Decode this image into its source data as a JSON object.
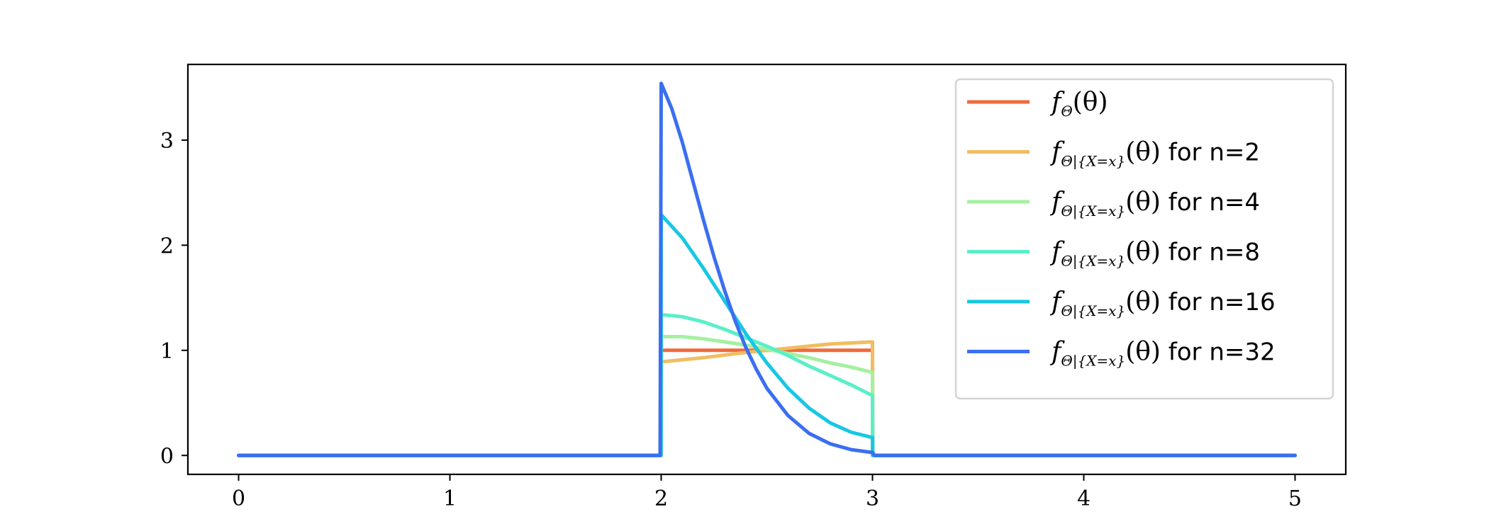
{
  "chart_data": {
    "type": "line",
    "title": "",
    "xlabel": "",
    "ylabel": "",
    "xlim": [
      -0.24,
      5.24
    ],
    "ylim": [
      -0.18,
      3.72
    ],
    "xticks": [
      0,
      1,
      2,
      3,
      4,
      5
    ],
    "yticks": [
      0,
      1,
      2,
      3
    ],
    "grid": false,
    "legend_position": "top-right",
    "series": [
      {
        "name": "f_Θ(θ)",
        "legend": {
          "main": "f",
          "sub": "Θ",
          "arg": "(θ)",
          "suffix": ""
        },
        "color": "#ef6a3c",
        "x": [
          0,
          1.999,
          2,
          3,
          3.001,
          5
        ],
        "y": [
          0,
          0,
          1,
          1,
          0,
          0
        ]
      },
      {
        "name": "f_{Θ|{X=x}}(θ) for n=2",
        "legend": {
          "main": "f",
          "sub": "Θ|{X=x}",
          "arg": "(θ)",
          "suffix": " for n=2"
        },
        "color": "#f0bd62",
        "x": [
          0,
          1.999,
          2,
          2.2,
          2.4,
          2.6,
          2.8,
          3,
          3.001,
          5
        ],
        "y": [
          0,
          0,
          0.89,
          0.93,
          0.98,
          1.02,
          1.06,
          1.08,
          0,
          0
        ]
      },
      {
        "name": "f_{Θ|{X=x}}(θ) for n=4",
        "legend": {
          "main": "f",
          "sub": "Θ|{X=x}",
          "arg": "(θ)",
          "suffix": " for n=4"
        },
        "color": "#a4f0a0",
        "x": [
          0,
          1.999,
          2,
          2.1,
          2.2,
          2.3,
          2.4,
          2.5,
          2.6,
          2.7,
          2.8,
          2.9,
          3,
          3.001,
          5
        ],
        "y": [
          0,
          0,
          1.13,
          1.13,
          1.11,
          1.08,
          1.05,
          1.01,
          0.97,
          0.93,
          0.88,
          0.84,
          0.79,
          0,
          0
        ]
      },
      {
        "name": "f_{Θ|{X=x}}(θ) for n=8",
        "legend": {
          "main": "f",
          "sub": "Θ|{X=x}",
          "arg": "(θ)",
          "suffix": " for n=8"
        },
        "color": "#5aefc8",
        "x": [
          0,
          1.999,
          2,
          2.1,
          2.2,
          2.3,
          2.4,
          2.5,
          2.6,
          2.7,
          2.8,
          2.9,
          3,
          3.001,
          5
        ],
        "y": [
          0,
          0,
          1.34,
          1.32,
          1.27,
          1.2,
          1.12,
          1.04,
          0.95,
          0.85,
          0.76,
          0.67,
          0.57,
          0,
          0
        ]
      },
      {
        "name": "f_{Θ|{X=x}}(θ) for n=16",
        "legend": {
          "main": "f",
          "sub": "Θ|{X=x}",
          "arg": "(θ)",
          "suffix": " for n=16"
        },
        "color": "#17c7e3",
        "x": [
          0,
          1.999,
          2,
          2.1,
          2.2,
          2.3,
          2.4,
          2.5,
          2.6,
          2.7,
          2.8,
          2.9,
          3,
          3.001,
          5
        ],
        "y": [
          0,
          0,
          2.29,
          2.07,
          1.78,
          1.47,
          1.16,
          0.88,
          0.64,
          0.45,
          0.31,
          0.22,
          0.17,
          0,
          0
        ]
      },
      {
        "name": "f_{Θ|{X=x}}(θ) for n=32",
        "legend": {
          "main": "f",
          "sub": "Θ|{X=x}",
          "arg": "(θ)",
          "suffix": " for n=32"
        },
        "color": "#3b6ff0",
        "x": [
          0,
          1.995,
          2,
          2.05,
          2.1,
          2.15,
          2.2,
          2.25,
          2.3,
          2.35,
          2.4,
          2.45,
          2.5,
          2.6,
          2.7,
          2.8,
          2.9,
          3,
          3.01,
          5
        ],
        "y": [
          0,
          0,
          3.54,
          3.3,
          2.98,
          2.61,
          2.24,
          1.89,
          1.57,
          1.28,
          1.03,
          0.82,
          0.64,
          0.38,
          0.21,
          0.11,
          0.055,
          0.028,
          0,
          0
        ]
      }
    ]
  }
}
